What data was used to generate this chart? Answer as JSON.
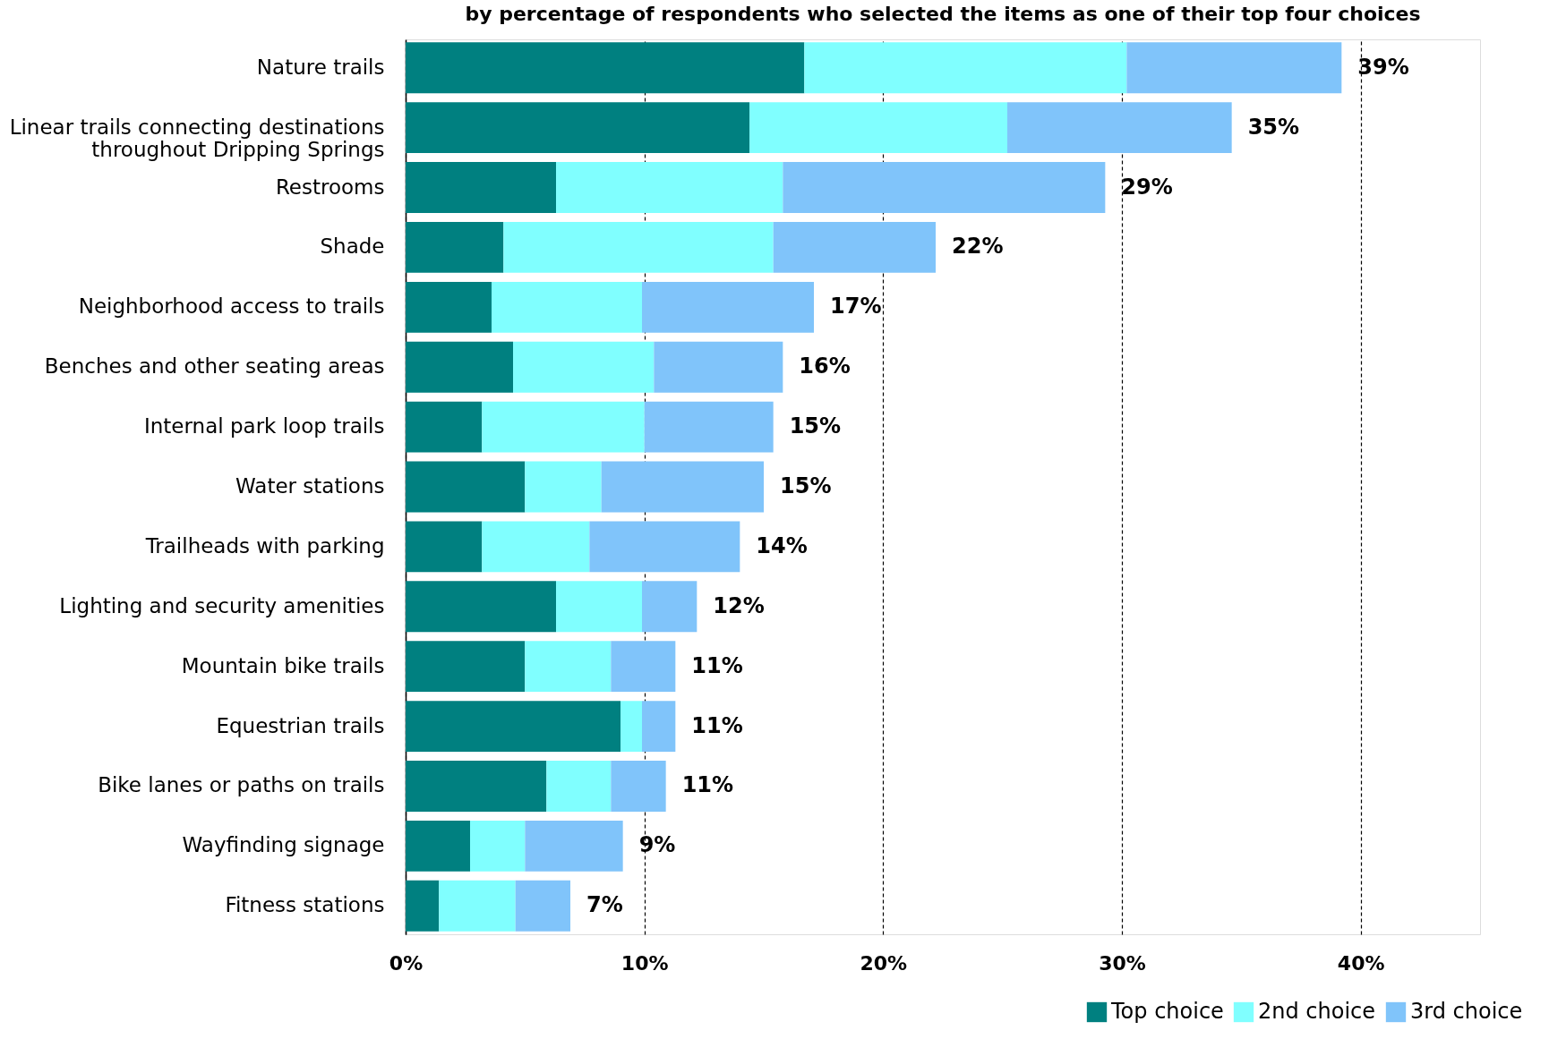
{
  "chart_data": {
    "type": "bar",
    "orientation": "horizontal",
    "stacked": true,
    "title": "by percentage of respondents who selected the items as one of their top four choices",
    "categories": [
      "Nature trails",
      "Linear trails connecting destinations throughout Dripping Springs",
      "Restrooms",
      "Shade",
      "Neighborhood access to trails",
      "Benches and other seating areas",
      "Internal park loop trails",
      "Water stations",
      "Trailheads with parking",
      "Lighting and security amenities",
      "Mountain bike trails",
      "Equestrian trails",
      "Bike lanes or paths on trails",
      "Wayfinding signage",
      "Fitness stations"
    ],
    "series": [
      {
        "name": "Top choice",
        "color": "#008080",
        "values": [
          16.7,
          14.4,
          6.3,
          4.1,
          3.6,
          4.5,
          3.2,
          5.0,
          3.2,
          6.3,
          5.0,
          9.0,
          5.9,
          2.7,
          1.4
        ]
      },
      {
        "name": "2nd choice",
        "color": "#80ffff",
        "values": [
          13.5,
          10.8,
          9.5,
          11.3,
          6.3,
          5.9,
          6.8,
          3.2,
          4.5,
          3.6,
          3.6,
          0.9,
          2.7,
          2.3,
          3.2
        ]
      },
      {
        "name": "3rd choice",
        "color": "#80c4fa",
        "values": [
          9.0,
          9.4,
          13.5,
          6.8,
          7.2,
          5.4,
          5.4,
          6.8,
          6.3,
          2.3,
          2.7,
          1.4,
          2.3,
          4.1,
          2.3
        ]
      }
    ],
    "totals": [
      "39%",
      "35%",
      "29%",
      "22%",
      "17%",
      "16%",
      "15%",
      "15%",
      "14%",
      "12%",
      "11%",
      "11%",
      "11%",
      "9%",
      "7%"
    ],
    "xlim": [
      0,
      45
    ],
    "xticks": [
      {
        "value": 0,
        "label": "0%"
      },
      {
        "value": 10,
        "label": "10%"
      },
      {
        "value": 20,
        "label": "20%"
      },
      {
        "value": 30,
        "label": "30%"
      },
      {
        "value": 40,
        "label": "40%"
      }
    ],
    "grid": "x",
    "legend": "bottom right"
  }
}
